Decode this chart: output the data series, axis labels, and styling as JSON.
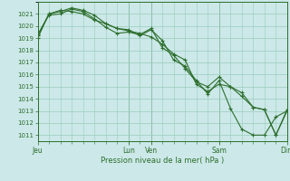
{
  "title": "Pression niveau de la mer( hPa )",
  "bg_color": "#cce8e8",
  "grid_color": "#99ccbb",
  "line_color": "#2d6e2d",
  "marker_color": "#2d6e2d",
  "ylim": [
    1010.5,
    1022.0
  ],
  "yticks": [
    1011,
    1012,
    1013,
    1014,
    1015,
    1016,
    1017,
    1018,
    1019,
    1020,
    1021
  ],
  "day_labels": [
    "Jeu",
    "Lun",
    "Ven",
    "Sam",
    "Dim"
  ],
  "day_positions": [
    0.0,
    0.364,
    0.455,
    0.727,
    1.0
  ],
  "xlim": [
    0.0,
    1.0
  ],
  "series1_x": [
    0.0,
    0.045,
    0.091,
    0.136,
    0.182,
    0.227,
    0.273,
    0.318,
    0.364,
    0.409,
    0.455,
    0.5,
    0.545,
    0.591,
    0.636,
    0.682,
    0.727,
    0.773,
    0.818,
    0.864,
    0.909,
    0.955,
    1.0
  ],
  "series1_y": [
    1019.2,
    1021.0,
    1021.3,
    1021.2,
    1021.0,
    1020.5,
    1020.2,
    1019.8,
    1019.6,
    1019.4,
    1019.1,
    1018.5,
    1017.7,
    1017.2,
    1015.2,
    1014.6,
    1015.2,
    1015.0,
    1014.5,
    1013.3,
    1013.1,
    1011.0,
    1013.0
  ],
  "series2_x": [
    0.0,
    0.045,
    0.091,
    0.136,
    0.182,
    0.227,
    0.273,
    0.318,
    0.364,
    0.409,
    0.455,
    0.5,
    0.545,
    0.591,
    0.636,
    0.682,
    0.727,
    0.773,
    0.818,
    0.864,
    0.909,
    0.955,
    1.0
  ],
  "series2_y": [
    1019.0,
    1021.0,
    1021.2,
    1021.5,
    1021.3,
    1020.9,
    1020.2,
    1019.8,
    1019.7,
    1019.2,
    1019.7,
    1018.8,
    1017.2,
    1016.7,
    1015.5,
    1014.4,
    1015.5,
    1013.2,
    1011.5,
    1011.0,
    1011.0,
    1012.5,
    1013.0
  ],
  "series3_x": [
    0.0,
    0.045,
    0.091,
    0.136,
    0.182,
    0.227,
    0.273,
    0.318,
    0.364,
    0.409,
    0.455,
    0.5,
    0.545,
    0.591,
    0.636,
    0.682,
    0.727,
    0.773,
    0.818,
    0.864,
    0.909,
    0.955,
    1.0
  ],
  "series3_y": [
    1019.3,
    1020.9,
    1021.0,
    1021.4,
    1021.2,
    1020.6,
    1019.9,
    1019.4,
    1019.5,
    1019.3,
    1019.8,
    1018.2,
    1017.6,
    1016.5,
    1015.4,
    1015.0,
    1015.8,
    1015.0,
    1014.2,
    1013.3,
    1013.1,
    1011.0,
    1013.1
  ]
}
